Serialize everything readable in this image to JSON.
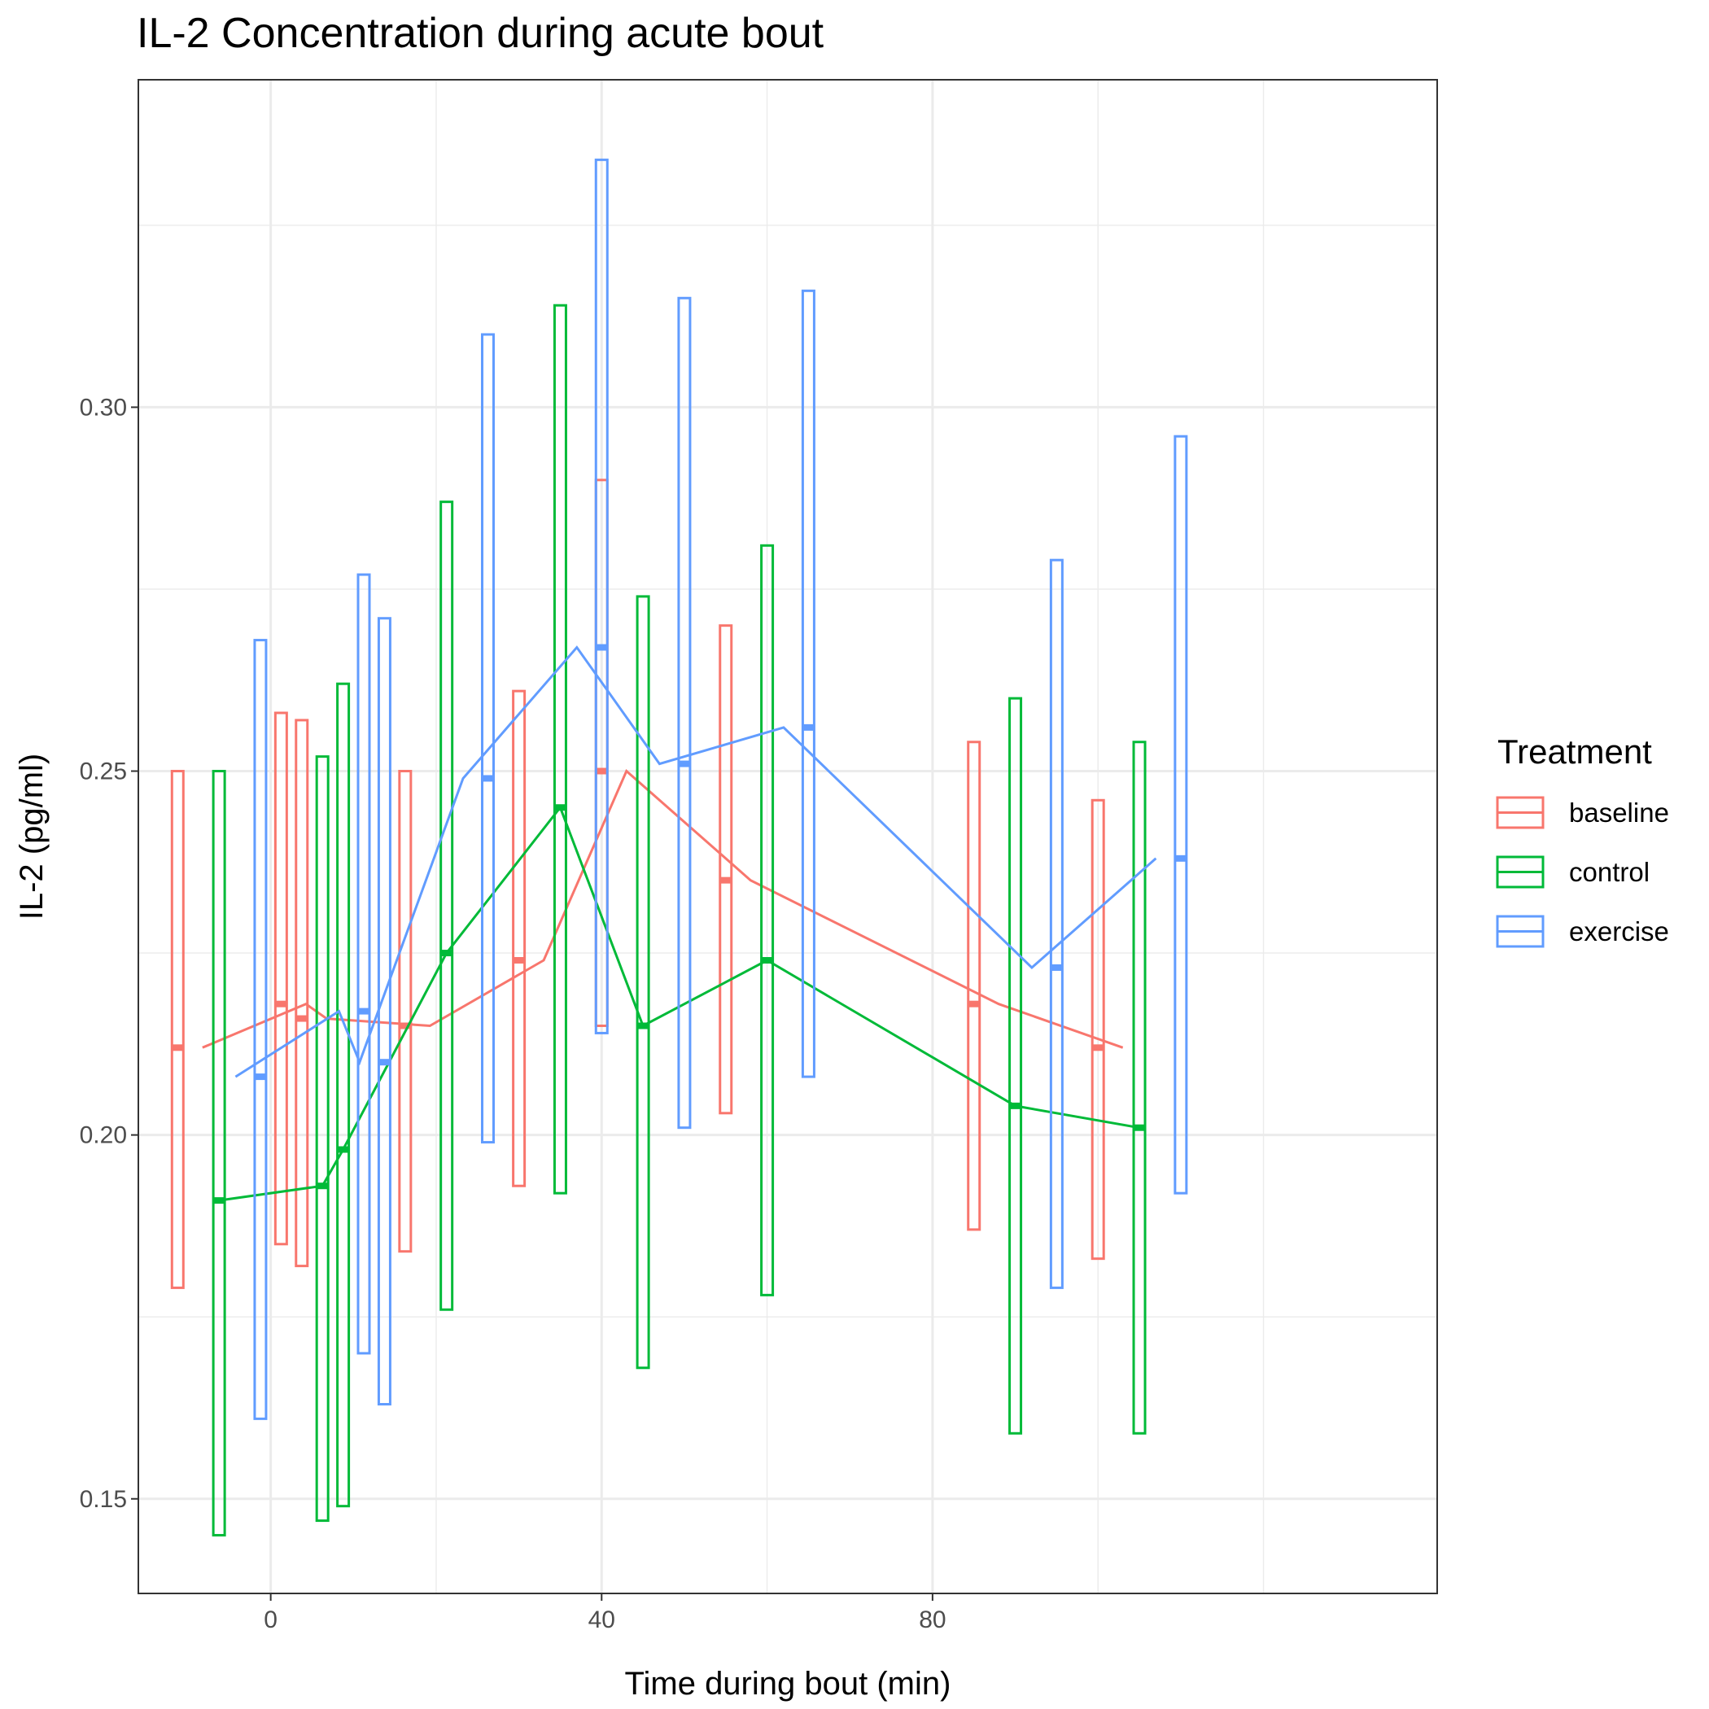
{
  "chart_data": {
    "type": "line",
    "title": "IL-2 Concentration during acute bout",
    "xlabel": "Time during bout (min)",
    "ylabel": "IL-2 (pg/ml)",
    "xlim": [
      -16,
      141
    ],
    "ylim": [
      0.137,
      0.345
    ],
    "x_ticks": [
      0,
      40,
      80
    ],
    "x_tick_labels": [
      "0",
      "40",
      "80"
    ],
    "y_ticks": [
      0.15,
      0.2,
      0.25,
      0.3
    ],
    "y_tick_labels": [
      "0.15",
      "0.20",
      "0.25",
      "0.30"
    ],
    "x_minor": [
      20,
      60,
      100,
      120
    ],
    "y_minor": [
      0.175,
      0.225,
      0.275,
      0.325
    ],
    "grid": true,
    "legend": {
      "title": "Treatment",
      "position": "right",
      "entries": [
        "baseline",
        "control",
        "exercise"
      ]
    },
    "time_points": [
      0,
      15,
      35,
      45,
      60,
      90,
      105
    ],
    "dodge": [
      -5,
      0,
      5
    ],
    "series": [
      {
        "name": "baseline",
        "color": "#F8766D",
        "points": [
          {
            "x": 0,
            "y": 0.212,
            "ymin": 0.179,
            "ymax": 0.25
          },
          {
            "x": 0,
            "y": 0.218,
            "ymin": 0.185,
            "ymax": 0.258
          },
          {
            "x": 15,
            "y": 0.216,
            "ymin": 0.182,
            "ymax": 0.257
          },
          {
            "x": 15,
            "y": 0.215,
            "ymin": 0.184,
            "ymax": 0.25
          },
          {
            "x": 35,
            "y": 0.224,
            "ymin": 0.193,
            "ymax": 0.261
          },
          {
            "x": 45,
            "y": 0.25,
            "ymin": 0.215,
            "ymax": 0.29
          },
          {
            "x": 60,
            "y": 0.235,
            "ymin": 0.203,
            "ymax": 0.27
          },
          {
            "x": 90,
            "y": 0.218,
            "ymin": 0.187,
            "ymax": 0.254
          },
          {
            "x": 105,
            "y": 0.212,
            "ymin": 0.183,
            "ymax": 0.246
          }
        ]
      },
      {
        "name": "control",
        "color": "#00BA38",
        "points": [
          {
            "x": 0,
            "y": 0.191,
            "ymin": 0.145,
            "ymax": 0.25
          },
          {
            "x": 0,
            "y": 0.193,
            "ymin": 0.147,
            "ymax": 0.252
          },
          {
            "x": 15,
            "y": 0.198,
            "ymin": 0.149,
            "ymax": 0.262
          },
          {
            "x": 15,
            "y": 0.225,
            "ymin": 0.176,
            "ymax": 0.287
          },
          {
            "x": 35,
            "y": 0.245,
            "ymin": 0.192,
            "ymax": 0.314
          },
          {
            "x": 45,
            "y": 0.215,
            "ymin": 0.168,
            "ymax": 0.274
          },
          {
            "x": 60,
            "y": 0.224,
            "ymin": 0.178,
            "ymax": 0.281
          },
          {
            "x": 90,
            "y": 0.204,
            "ymin": 0.159,
            "ymax": 0.26
          },
          {
            "x": 105,
            "y": 0.201,
            "ymin": 0.159,
            "ymax": 0.254
          }
        ]
      },
      {
        "name": "exercise",
        "color": "#619CFF",
        "points": [
          {
            "x": 0,
            "y": 0.208,
            "ymin": 0.161,
            "ymax": 0.268
          },
          {
            "x": 0,
            "y": 0.217,
            "ymin": 0.17,
            "ymax": 0.277
          },
          {
            "x": 15,
            "y": 0.21,
            "ymin": 0.163,
            "ymax": 0.271
          },
          {
            "x": 15,
            "y": 0.249,
            "ymin": 0.199,
            "ymax": 0.31
          },
          {
            "x": 35,
            "y": 0.267,
            "ymin": 0.214,
            "ymax": 0.334
          },
          {
            "x": 45,
            "y": 0.251,
            "ymin": 0.201,
            "ymax": 0.315
          },
          {
            "x": 60,
            "y": 0.256,
            "ymin": 0.208,
            "ymax": 0.316
          },
          {
            "x": 90,
            "y": 0.223,
            "ymin": 0.179,
            "ymax": 0.279
          },
          {
            "x": 105,
            "y": 0.238,
            "ymin": 0.192,
            "ymax": 0.296
          }
        ]
      }
    ]
  }
}
